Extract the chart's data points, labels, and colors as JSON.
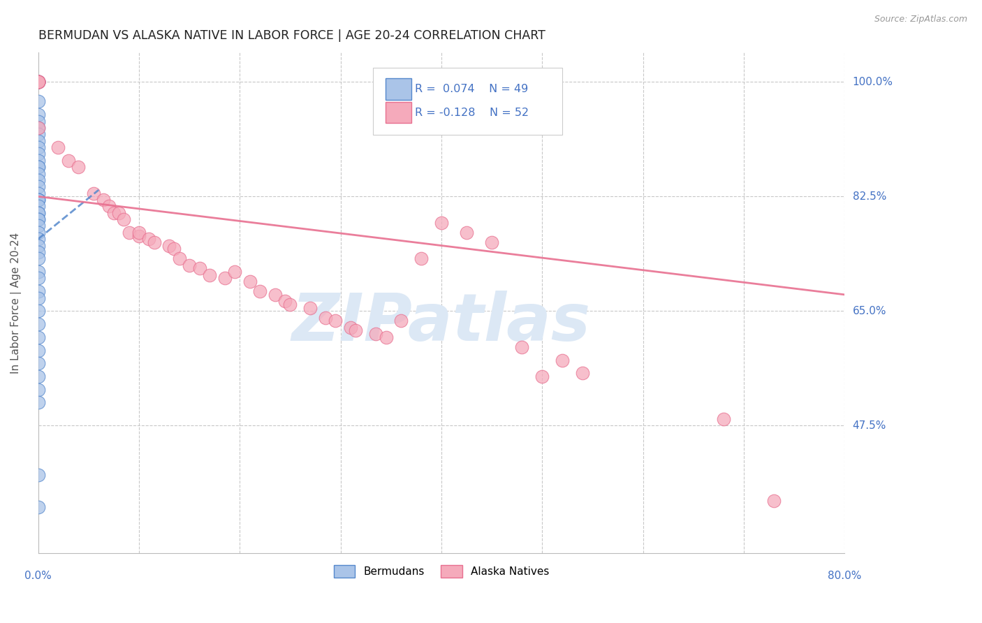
{
  "title": "BERMUDAN VS ALASKA NATIVE IN LABOR FORCE | AGE 20-24 CORRELATION CHART",
  "source": "Source: ZipAtlas.com",
  "ylabel": "In Labor Force | Age 20-24",
  "xmin": 0.0,
  "xmax": 0.8,
  "ymin": 0.28,
  "ymax": 1.045,
  "yticks": [
    0.475,
    0.65,
    0.825,
    1.0
  ],
  "ytick_labels": [
    "47.5%",
    "65.0%",
    "82.5%",
    "100.0%"
  ],
  "xticks": [
    0.0,
    0.1,
    0.2,
    0.3,
    0.4,
    0.5,
    0.6,
    0.7,
    0.8
  ],
  "axis_color": "#4472c4",
  "grid_color": "#c8c8c8",
  "watermark": "ZIPatlas",
  "watermark_color": "#dce8f5",
  "legend_label1": "Bermudans",
  "legend_label2": "Alaska Natives",
  "blue_fill": "#aac4e8",
  "blue_edge": "#5588cc",
  "pink_fill": "#f5aabb",
  "pink_edge": "#e87090",
  "bermudans_x": [
    0.0,
    0.0,
    0.0,
    0.0,
    0.0,
    0.0,
    0.0,
    0.0,
    0.0,
    0.0,
    0.0,
    0.0,
    0.0,
    0.0,
    0.0,
    0.0,
    0.0,
    0.0,
    0.0,
    0.0,
    0.0,
    0.0,
    0.0,
    0.0,
    0.0,
    0.0,
    0.0,
    0.0,
    0.0,
    0.0,
    0.0,
    0.0,
    0.0,
    0.0,
    0.0,
    0.0,
    0.0,
    0.0,
    0.0,
    0.0,
    0.0,
    0.0,
    0.0,
    0.0,
    0.0,
    0.0,
    0.0,
    0.0,
    0.0
  ],
  "bermudans_y": [
    1.0,
    1.0,
    1.0,
    1.0,
    1.0,
    1.0,
    0.97,
    0.95,
    0.94,
    0.93,
    0.92,
    0.91,
    0.9,
    0.89,
    0.88,
    0.87,
    0.87,
    0.86,
    0.85,
    0.84,
    0.83,
    0.82,
    0.82,
    0.82,
    0.81,
    0.8,
    0.8,
    0.79,
    0.79,
    0.78,
    0.77,
    0.76,
    0.75,
    0.74,
    0.73,
    0.71,
    0.7,
    0.68,
    0.67,
    0.65,
    0.63,
    0.61,
    0.59,
    0.57,
    0.55,
    0.53,
    0.51,
    0.4,
    0.35
  ],
  "alaska_x": [
    0.0,
    0.0,
    0.0,
    0.0,
    0.0,
    0.0,
    0.0,
    0.02,
    0.03,
    0.04,
    0.055,
    0.065,
    0.07,
    0.075,
    0.08,
    0.085,
    0.09,
    0.1,
    0.1,
    0.11,
    0.115,
    0.13,
    0.135,
    0.14,
    0.15,
    0.16,
    0.17,
    0.185,
    0.195,
    0.21,
    0.22,
    0.235,
    0.245,
    0.25,
    0.27,
    0.285,
    0.295,
    0.31,
    0.315,
    0.335,
    0.345,
    0.36,
    0.38,
    0.4,
    0.425,
    0.45,
    0.48,
    0.5,
    0.52,
    0.54,
    0.68,
    0.73
  ],
  "alaska_y": [
    1.0,
    1.0,
    1.0,
    1.0,
    1.0,
    1.0,
    0.93,
    0.9,
    0.88,
    0.87,
    0.83,
    0.82,
    0.81,
    0.8,
    0.8,
    0.79,
    0.77,
    0.765,
    0.77,
    0.76,
    0.755,
    0.75,
    0.745,
    0.73,
    0.72,
    0.715,
    0.705,
    0.7,
    0.71,
    0.695,
    0.68,
    0.675,
    0.665,
    0.66,
    0.655,
    0.64,
    0.635,
    0.625,
    0.62,
    0.615,
    0.61,
    0.635,
    0.73,
    0.785,
    0.77,
    0.755,
    0.595,
    0.55,
    0.575,
    0.555,
    0.485,
    0.36
  ],
  "blue_trend_x": [
    0.0,
    0.06
  ],
  "blue_trend_y": [
    0.76,
    0.835
  ],
  "pink_trend_x": [
    0.0,
    0.8
  ],
  "pink_trend_y": [
    0.825,
    0.675
  ]
}
